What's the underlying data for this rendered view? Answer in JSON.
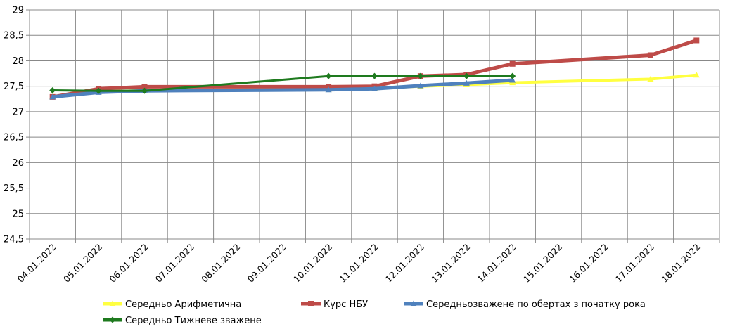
{
  "chart_data": {
    "type": "line",
    "categories": [
      "04.01.2022",
      "05.01.2022",
      "06.01.2022",
      "07.01.2022",
      "08.01.2022",
      "09.01.2022",
      "10.01.2022",
      "11.01.2022",
      "12.01.2022",
      "13.01.2022",
      "14.01.2022",
      "15.01.2022",
      "16.01.2022",
      "17.01.2022",
      "18.01.2022"
    ],
    "y_ticks": [
      "24,5",
      "25",
      "25,5",
      "26",
      "26,5",
      "27",
      "27,5",
      "28",
      "28,5",
      "29"
    ],
    "ylim": [
      24.5,
      29
    ],
    "ystep": 0.5,
    "grid": true,
    "legend_position": "bottom",
    "series": [
      {
        "name": "Середньо Арифметична",
        "color": "#FFFF40",
        "marker": "triangle",
        "values": [
          27.3,
          27.39,
          27.42,
          null,
          null,
          null,
          27.44,
          27.46,
          27.5,
          27.53,
          27.57,
          null,
          null,
          27.64,
          27.72
        ]
      },
      {
        "name": "Курс НБУ",
        "color": "#BE4B48",
        "marker": "square",
        "values": [
          27.29,
          27.45,
          27.49,
          null,
          null,
          null,
          27.49,
          27.5,
          27.7,
          27.73,
          27.94,
          null,
          null,
          28.11,
          28.4
        ]
      },
      {
        "name": "Середньозважене по обертах з початку рока",
        "color": "#4F81BD",
        "marker": "triangle",
        "values": [
          27.29,
          27.38,
          27.41,
          null,
          null,
          null,
          27.43,
          27.45,
          27.51,
          27.56,
          27.62,
          null,
          null,
          null,
          null
        ]
      },
      {
        "name": "Середньо Тижневе зважене",
        "color": "#1E7A1E",
        "marker": "diamond",
        "values": [
          27.42,
          27.41,
          27.41,
          null,
          null,
          null,
          27.7,
          27.7,
          27.7,
          27.7,
          27.7,
          null,
          null,
          null,
          null
        ]
      }
    ]
  }
}
